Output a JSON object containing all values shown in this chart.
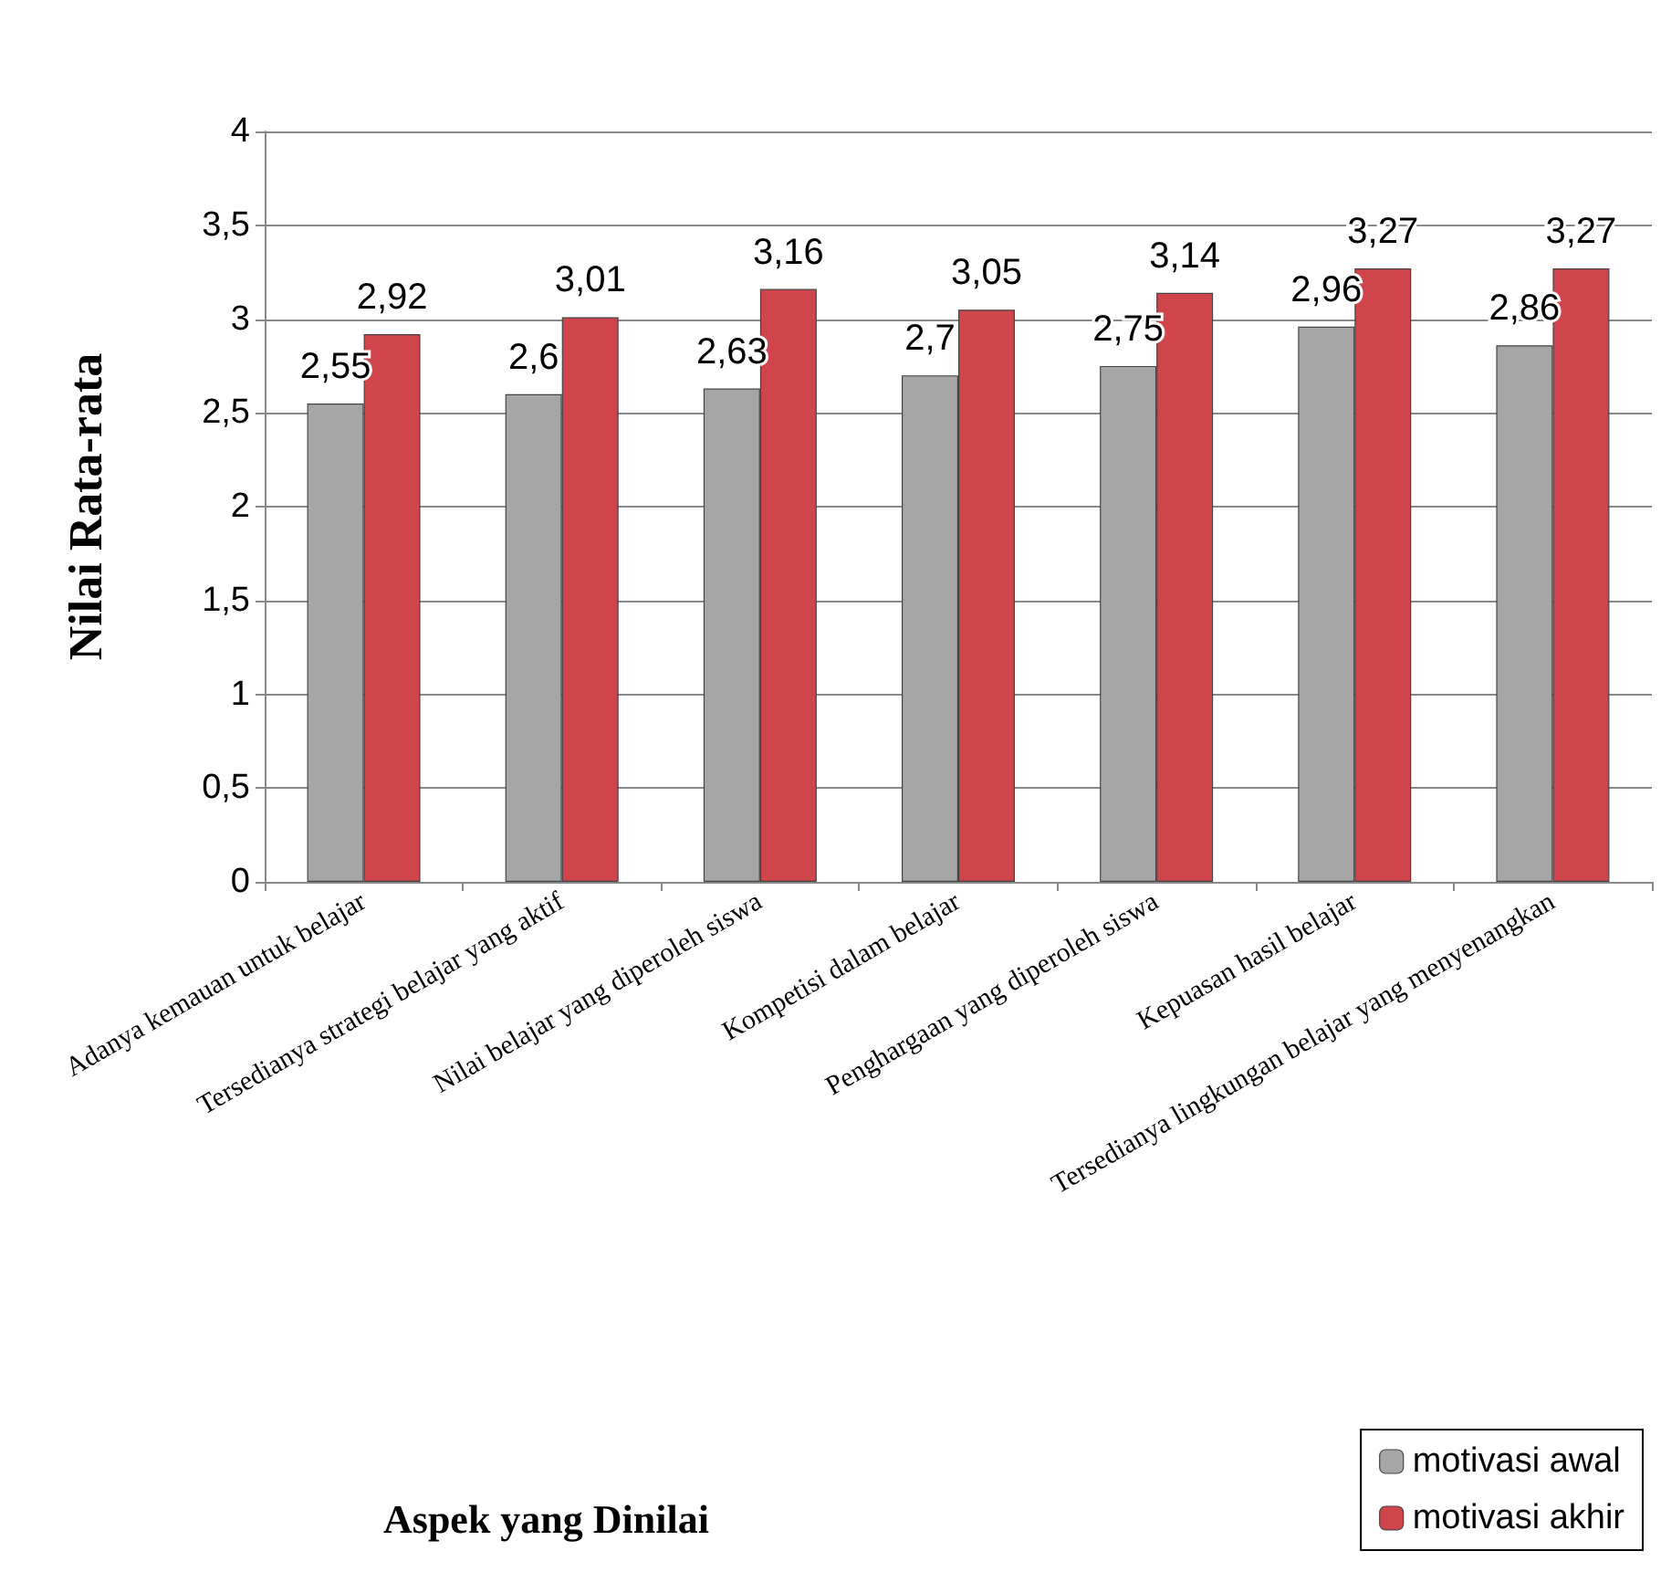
{
  "chart_data": {
    "type": "bar",
    "annotations": [
      "Aspek yang Dinilai"
    ],
    "ylabel": "Nilai Rata-rata",
    "categories": [
      "Adanya kemauan untuk belajar",
      "Tersedianya strategi belajar yang aktif",
      "Nilai belajar yang diperoleh siswa",
      "Kompetisi dalam belajar",
      "Penghargaan yang diperoleh siswa",
      "Kepuasan hasil belajar",
      "Tersedianya lingkungan belajar yang menyenangkan"
    ],
    "series": [
      {
        "name": "motivasi awal",
        "color": "#a6a6a6",
        "values": [
          2.55,
          2.6,
          2.63,
          2.7,
          2.75,
          2.96,
          2.86
        ],
        "value_labels": [
          "2,55",
          "2,6",
          "2,63",
          "2,7",
          "2,75",
          "2,96",
          "2,86"
        ]
      },
      {
        "name": "motivasi akhir",
        "color": "#d0454c",
        "values": [
          2.92,
          3.01,
          3.16,
          3.05,
          3.14,
          3.27,
          3.27
        ],
        "value_labels": [
          "2,92",
          "3,01",
          "3,16",
          "3,05",
          "3,14",
          "3,27",
          "3,27"
        ]
      }
    ],
    "ylim": [
      0,
      4
    ],
    "yticks": [
      0,
      {
        "value": 0.5,
        "label": "0,5"
      },
      1,
      {
        "value": 1.5,
        "label": "1,5"
      },
      2,
      {
        "value": 2.5,
        "label": "2,5"
      },
      3,
      {
        "value": 3.5,
        "label": "3,5"
      },
      4
    ],
    "grid": "y",
    "legend": "bottom right"
  }
}
